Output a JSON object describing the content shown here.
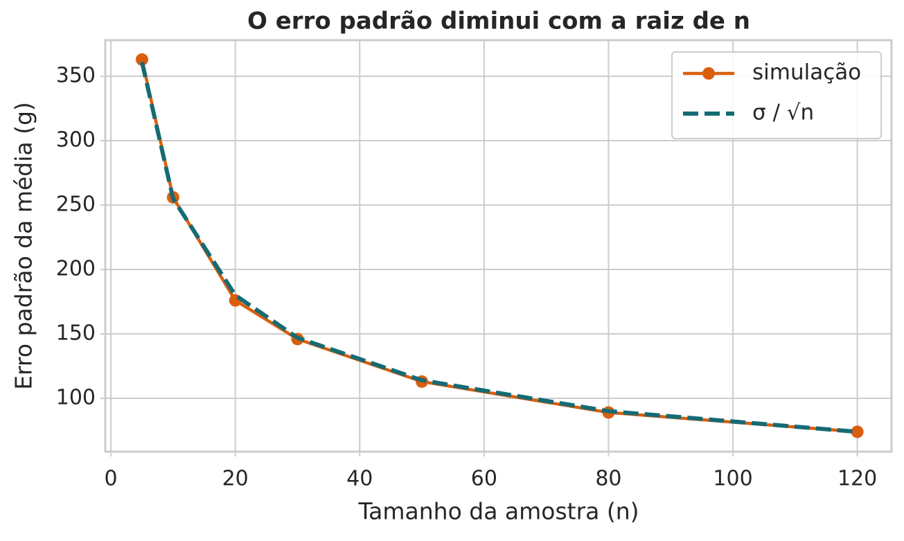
{
  "chart_data": {
    "type": "line",
    "title": "O erro padrão diminui com a raiz de n",
    "xlabel": "Tamanho da amostra (n)",
    "ylabel": "Erro padrão da média (g)",
    "x": [
      5,
      10,
      20,
      30,
      50,
      80,
      120
    ],
    "series": [
      {
        "name": "simulação",
        "color": "#d95f0e",
        "style": "solid",
        "marker": true,
        "values": [
          363,
          256,
          176,
          146,
          113,
          89,
          74
        ]
      },
      {
        "name": "σ / √n",
        "color": "#156b74",
        "style": "dashed",
        "marker": false,
        "values": [
          361,
          255,
          180,
          147,
          114,
          90,
          74
        ]
      }
    ],
    "xlim": [
      -0.9,
      125.5
    ],
    "xticks": [
      0,
      20,
      40,
      60,
      80,
      100,
      120
    ],
    "ylim": [
      58.6,
      378
    ],
    "yticks": [
      100,
      150,
      200,
      250,
      300,
      350
    ],
    "grid": true,
    "legend": "upper right"
  }
}
